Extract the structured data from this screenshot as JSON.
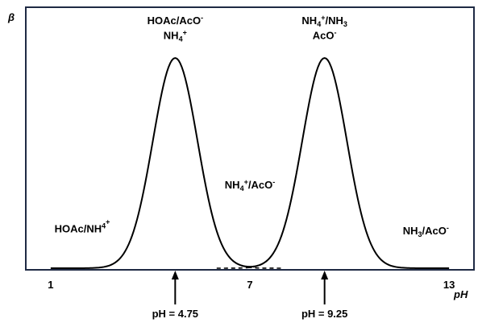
{
  "chart_data": {
    "type": "line",
    "title": "",
    "xlabel": "pH",
    "ylabel": "β",
    "xlim": [
      0.25,
      13.75
    ],
    "x_ticks": [
      {
        "value": 1,
        "label": "1"
      },
      {
        "value": 7,
        "label": "7"
      },
      {
        "value": 13,
        "label": "13"
      }
    ],
    "series": [
      {
        "style": "solid",
        "peaks": [
          {
            "x": 4.75,
            "height": 1.0,
            "width": 0.95
          },
          {
            "x": 9.25,
            "height": 1.0,
            "width": 0.95
          }
        ]
      },
      {
        "style": "dashed",
        "x_range": [
          5.45,
          8.0
        ],
        "peaks": [
          {
            "x": 4.75,
            "height": 1.0,
            "width": 0.95
          }
        ]
      },
      {
        "style": "dashed",
        "x_range": [
          6.0,
          8.55
        ],
        "peaks": [
          {
            "x": 9.25,
            "height": 1.0,
            "width": 0.95
          }
        ]
      }
    ],
    "annotations": [
      {
        "x": 1.95,
        "y": 0.17,
        "parts": [
          [
            "HOAc/NH",
            ""
          ],
          [
            "4",
            "sup"
          ],
          [
            "+",
            "sup"
          ]
        ]
      },
      {
        "x": 4.75,
        "y": 1.16,
        "parts": [
          [
            "HOAc/AcO",
            ""
          ],
          [
            "-",
            "sup"
          ]
        ]
      },
      {
        "x": 4.75,
        "y": 1.09,
        "parts": [
          [
            "NH",
            ""
          ],
          [
            "4",
            "sub"
          ],
          [
            "+",
            "sup"
          ]
        ]
      },
      {
        "x": 7.0,
        "y": 0.38,
        "parts": [
          [
            "NH",
            ""
          ],
          [
            "4",
            "sub"
          ],
          [
            "+",
            "sup"
          ],
          [
            "/AcO",
            ""
          ],
          [
            "-",
            "sup"
          ]
        ]
      },
      {
        "x": 9.25,
        "y": 1.16,
        "parts": [
          [
            "NH",
            ""
          ],
          [
            "4",
            "sub"
          ],
          [
            "+",
            "sup"
          ],
          [
            "/NH",
            ""
          ],
          [
            "3",
            "sub"
          ]
        ]
      },
      {
        "x": 9.25,
        "y": 1.09,
        "parts": [
          [
            "AcO",
            ""
          ],
          [
            "-",
            "sup"
          ]
        ]
      },
      {
        "x": 12.3,
        "y": 0.16,
        "parts": [
          [
            "NH",
            ""
          ],
          [
            "3",
            "sub"
          ],
          [
            "/AcO",
            ""
          ],
          [
            "-",
            "sup"
          ]
        ]
      }
    ],
    "markers": [
      {
        "x": 4.75,
        "label": "pH = 4.75"
      },
      {
        "x": 9.25,
        "label": "pH = 9.25"
      }
    ]
  }
}
